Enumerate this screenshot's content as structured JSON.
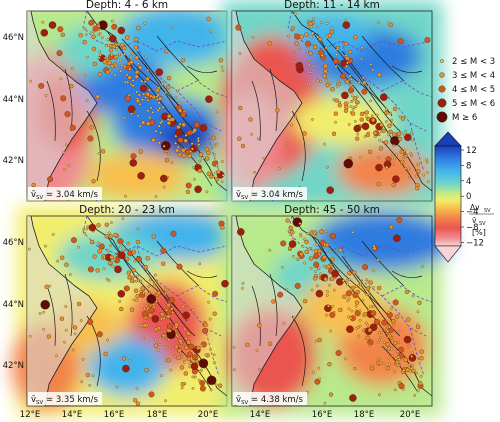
{
  "panels": [
    {
      "title": "Depth: 4 - 6 km",
      "vref": "= 3.04 km/s"
    },
    {
      "title": "Depth: 11 - 14 km",
      "vref": "= 3.04 km/s"
    },
    {
      "title": "Depth: 20 - 23 km",
      "vref": "= 3.35 km/s"
    },
    {
      "title": "Depth: 45 - 50 km",
      "vref": "= 4.38 km/s"
    }
  ],
  "axes": {
    "lon_ticks": [
      "12°E",
      "14°E",
      "16°E",
      "18°E",
      "20°E"
    ],
    "lat_ticks": [
      "46°N",
      "44°N",
      "42°N"
    ]
  },
  "vref_symbol": "v̄",
  "vref_subscript": "SV",
  "magnitude_legend": {
    "entries": [
      {
        "label": "2 ≤ M < 3",
        "color": "#f2c14e"
      },
      {
        "label": "3 ≤ M < 4",
        "color": "#e8912e"
      },
      {
        "label": "4 ≤ M < 5",
        "color": "#d2571d"
      },
      {
        "label": "5 ≤ M < 6",
        "color": "#9e1f10"
      },
      {
        "label": "M ≥ 6",
        "color": "#5e0c06"
      }
    ]
  },
  "colorbar": {
    "ticks": [
      "12",
      "8",
      "4",
      "0",
      "−4",
      "−8",
      "−12"
    ],
    "label_parts": [
      "Δv",
      "SV",
      "v̄",
      "SV",
      "[%]"
    ],
    "colors": [
      "#1b3fb8",
      "#2f7be0",
      "#43b4ec",
      "#6fd6c8",
      "#b8e98a",
      "#f2ee6c",
      "#f7c050",
      "#f2844a",
      "#ea5650",
      "#f08a90",
      "#f8d4d6"
    ]
  },
  "colors": {
    "land": "#d9d9d9",
    "sea": "#f3f3f3",
    "faults": "#1a1a1a",
    "borders": "#6a4bc4",
    "coast": "#202020"
  }
}
